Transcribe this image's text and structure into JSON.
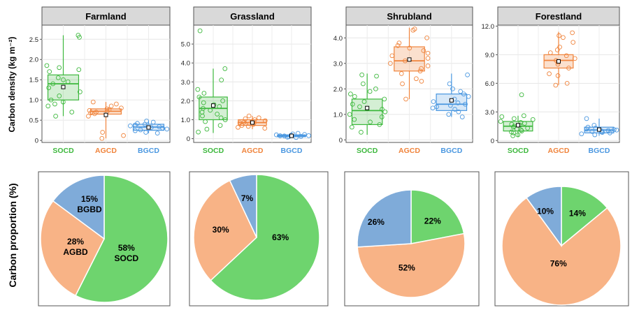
{
  "figure": {
    "ylabel_top": "Carbon density (kg m⁻²)",
    "ylabel_bottom": "Carbon proportion (%)"
  },
  "colors": {
    "SOCD": "#3db83d",
    "AGCD": "#f0843c",
    "BGCD": "#4a97e0",
    "pie_green": "#6ed46e",
    "pie_orange": "#f8b386",
    "pie_blue": "#7fabd9"
  },
  "chart_data": [
    {
      "type": "box",
      "title": "Farmland",
      "categories": [
        "SOCD",
        "AGCD",
        "BGCD"
      ],
      "yticks": [
        "0",
        "0.5",
        "1.0",
        "1.5",
        "2.0",
        "2.5"
      ],
      "ylim": [
        -0.05,
        2.85
      ],
      "boxes": [
        {
          "q1": 1.0,
          "median": 1.4,
          "q3": 1.62,
          "whisker_low": 0.6,
          "whisker_high": 2.6,
          "mean": 1.32,
          "points": [
            2.6,
            2.55,
            1.85,
            1.8,
            1.75,
            1.7,
            1.55,
            1.5,
            1.45,
            1.4,
            1.3,
            1.2,
            1.1,
            1.0,
            0.95,
            0.9,
            0.85,
            0.7,
            0.6
          ]
        },
        {
          "q1": 0.65,
          "median": 0.72,
          "q3": 0.78,
          "whisker_low": 0.05,
          "whisker_high": 0.95,
          "mean": 0.63,
          "points": [
            0.95,
            0.9,
            0.85,
            0.8,
            0.78,
            0.76,
            0.74,
            0.72,
            0.7,
            0.68,
            0.66,
            0.6,
            0.2,
            0.12,
            0.05
          ]
        },
        {
          "q1": 0.25,
          "median": 0.33,
          "q3": 0.4,
          "whisker_low": 0.18,
          "whisker_high": 0.48,
          "mean": 0.32,
          "points": [
            0.48,
            0.45,
            0.42,
            0.4,
            0.38,
            0.36,
            0.34,
            0.32,
            0.3,
            0.28,
            0.26,
            0.24,
            0.2,
            0.18
          ]
        }
      ]
    },
    {
      "type": "box",
      "title": "Grassland",
      "categories": [
        "SOCD",
        "AGCD",
        "BGCD"
      ],
      "yticks": [
        "0",
        "1.0",
        "2.0",
        "3.0",
        "4.0",
        "5.0"
      ],
      "ylim": [
        -0.2,
        6.0
      ],
      "boxes": [
        {
          "q1": 1.0,
          "median": 1.6,
          "q3": 2.2,
          "whisker_low": 0.3,
          "whisker_high": 3.7,
          "mean": 1.75,
          "points": [
            5.7,
            3.7,
            3.1,
            2.6,
            2.4,
            2.2,
            2.0,
            1.9,
            1.8,
            1.7,
            1.6,
            1.5,
            1.4,
            1.3,
            1.2,
            1.1,
            1.0,
            0.9,
            0.7,
            0.5,
            0.35
          ]
        },
        {
          "q1": 0.7,
          "median": 0.85,
          "q3": 1.0,
          "whisker_low": 0.5,
          "whisker_high": 1.2,
          "mean": 0.85,
          "points": [
            1.2,
            1.1,
            1.05,
            1.0,
            0.95,
            0.9,
            0.88,
            0.86,
            0.84,
            0.82,
            0.8,
            0.75,
            0.7,
            0.65,
            0.6,
            0.55
          ]
        },
        {
          "q1": 0.1,
          "median": 0.15,
          "q3": 0.2,
          "whisker_low": 0.05,
          "whisker_high": 0.3,
          "mean": 0.15,
          "points": [
            0.28,
            0.25,
            0.22,
            0.2,
            0.18,
            0.16,
            0.15,
            0.14,
            0.12,
            0.1,
            0.08,
            0.06
          ]
        }
      ]
    },
    {
      "type": "box",
      "title": "Shrubland",
      "categories": [
        "SOCD",
        "AGCD",
        "BGCD"
      ],
      "yticks": [
        "0",
        "1.0",
        "2.0",
        "3.0",
        "4.0"
      ],
      "ylim": [
        -0.1,
        4.5
      ],
      "boxes": [
        {
          "q1": 0.6,
          "median": 1.15,
          "q3": 1.6,
          "whisker_low": 0.2,
          "whisker_high": 2.6,
          "mean": 1.25,
          "points": [
            2.55,
            2.5,
            2.2,
            2.0,
            1.9,
            1.8,
            1.7,
            1.6,
            1.5,
            1.4,
            1.3,
            1.2,
            1.1,
            1.0,
            0.9,
            0.8,
            0.7,
            0.6,
            0.5,
            0.3
          ]
        },
        {
          "q1": 2.7,
          "median": 3.1,
          "q3": 3.65,
          "whisker_low": 1.6,
          "whisker_high": 4.4,
          "mean": 3.15,
          "points": [
            4.35,
            4.3,
            4.0,
            3.8,
            3.7,
            3.6,
            3.5,
            3.4,
            3.3,
            3.2,
            3.1,
            3.0,
            2.9,
            2.8,
            2.7,
            2.6,
            2.4,
            2.3,
            2.2,
            1.6
          ]
        },
        {
          "q1": 1.15,
          "median": 1.4,
          "q3": 1.8,
          "whisker_low": 0.9,
          "whisker_high": 2.6,
          "mean": 1.55,
          "points": [
            2.55,
            2.2,
            2.0,
            1.9,
            1.8,
            1.7,
            1.6,
            1.5,
            1.45,
            1.4,
            1.35,
            1.3,
            1.25,
            1.2,
            1.1,
            1.0,
            0.9
          ]
        }
      ]
    },
    {
      "type": "box",
      "title": "Forestland",
      "categories": [
        "SOCD",
        "AGCD",
        "BGCD"
      ],
      "yticks": [
        "0",
        "3.0",
        "6.0",
        "9.0",
        "12.0"
      ],
      "ylim": [
        -0.2,
        12.1
      ],
      "boxes": [
        {
          "q1": 1.0,
          "median": 1.5,
          "q3": 2.0,
          "whisker_low": 0.4,
          "whisker_high": 2.6,
          "mean": 1.6,
          "points": [
            4.8,
            2.6,
            2.5,
            2.3,
            2.2,
            2.0,
            1.9,
            1.8,
            1.7,
            1.6,
            1.5,
            1.4,
            1.3,
            1.2,
            1.1,
            1.0,
            0.9,
            0.8,
            0.6,
            0.5
          ]
        },
        {
          "q1": 7.6,
          "median": 8.4,
          "q3": 9.0,
          "whisker_low": 5.8,
          "whisker_high": 11.4,
          "mean": 8.3,
          "points": [
            11.3,
            11.0,
            10.8,
            10.3,
            9.8,
            9.5,
            9.2,
            8.9,
            8.6,
            8.4,
            8.2,
            8.0,
            7.6,
            7.0,
            6.8,
            6.0,
            5.8
          ]
        },
        {
          "q1": 0.8,
          "median": 1.1,
          "q3": 1.4,
          "whisker_low": 0.5,
          "whisker_high": 2.3,
          "mean": 1.15,
          "points": [
            2.3,
            1.6,
            1.4,
            1.3,
            1.2,
            1.15,
            1.1,
            1.05,
            1.0,
            0.95,
            0.9,
            0.85,
            0.8,
            0.7,
            0.6
          ]
        }
      ]
    },
    {
      "type": "pie",
      "title": "",
      "slices": [
        {
          "label": "58%",
          "sublabel": "SOCD",
          "value": 58,
          "color": "#6ed46e"
        },
        {
          "label": "28%",
          "sublabel": "AGBD",
          "value": 28,
          "color": "#f8b386"
        },
        {
          "label": "15%",
          "sublabel": "BGBD",
          "value": 15,
          "color": "#7fabd9"
        }
      ]
    },
    {
      "type": "pie",
      "title": "",
      "slices": [
        {
          "label": "63%",
          "sublabel": "",
          "value": 63,
          "color": "#6ed46e"
        },
        {
          "label": "30%",
          "sublabel": "",
          "value": 30,
          "color": "#f8b386"
        },
        {
          "label": "7%",
          "sublabel": "",
          "value": 7,
          "color": "#7fabd9"
        }
      ]
    },
    {
      "type": "pie",
      "title": "",
      "slices": [
        {
          "label": "22%",
          "sublabel": "",
          "value": 22,
          "color": "#6ed46e"
        },
        {
          "label": "52%",
          "sublabel": "",
          "value": 52,
          "color": "#f8b386"
        },
        {
          "label": "26%",
          "sublabel": "",
          "value": 26,
          "color": "#7fabd9"
        }
      ]
    },
    {
      "type": "pie",
      "title": "",
      "slices": [
        {
          "label": "14%",
          "sublabel": "",
          "value": 14,
          "color": "#6ed46e"
        },
        {
          "label": "76%",
          "sublabel": "",
          "value": 76,
          "color": "#f8b386"
        },
        {
          "label": "10%",
          "sublabel": "",
          "value": 10,
          "color": "#7fabd9"
        }
      ]
    }
  ]
}
